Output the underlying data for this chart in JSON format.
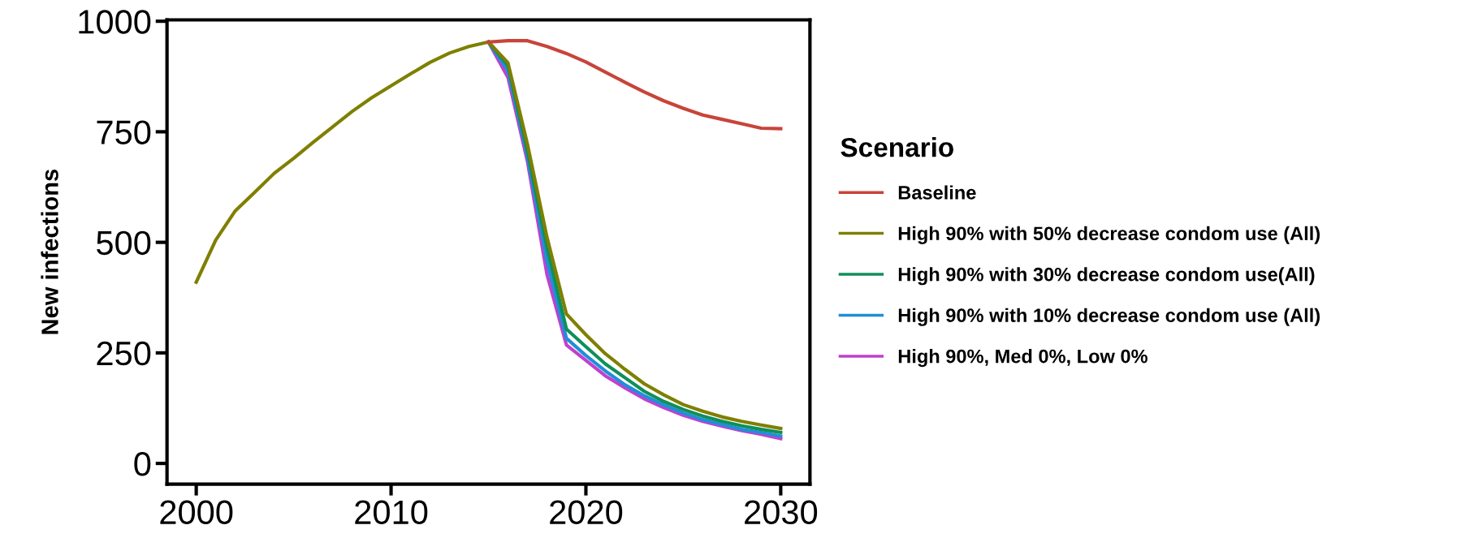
{
  "chart_data": {
    "type": "line",
    "ylabel": "New infections",
    "legend_title": "Scenario",
    "legend": "right",
    "grid": false,
    "x": [
      2000,
      2001,
      2002,
      2003,
      2004,
      2005,
      2006,
      2007,
      2008,
      2009,
      2010,
      2011,
      2012,
      2013,
      2014,
      2015,
      2016,
      2017,
      2018,
      2019,
      2020,
      2021,
      2022,
      2023,
      2024,
      2025,
      2026,
      2027,
      2028,
      2029,
      2030
    ],
    "xlim": [
      1998.5,
      2031.5
    ],
    "xticks": [
      2000,
      2010,
      2020,
      2030
    ],
    "ylim": [
      -47,
      1003
    ],
    "yticks": [
      0,
      250,
      500,
      750,
      1000
    ],
    "series": [
      {
        "name": "Baseline",
        "color": "#c8443a",
        "values": [
          null,
          null,
          null,
          null,
          null,
          null,
          null,
          null,
          null,
          null,
          null,
          null,
          null,
          null,
          null,
          953,
          956,
          956,
          943,
          927,
          908,
          885,
          862,
          840,
          820,
          803,
          788,
          778,
          768,
          758,
          757
        ]
      },
      {
        "name": "High 90% with 50% decrease condom use (All)",
        "color": "#7f7f00",
        "values": [
          410,
          505,
          571,
          613,
          656,
          690,
          726,
          761,
          796,
          827,
          854,
          881,
          907,
          928,
          943,
          953,
          906,
          722,
          512,
          338,
          291,
          248,
          213,
          180,
          155,
          133,
          118,
          105,
          95,
          87,
          79
        ]
      },
      {
        "name": "High 90% with 30% decrease condom use(All)",
        "color": "#0f8f5a",
        "values": [
          null,
          null,
          null,
          null,
          null,
          null,
          null,
          null,
          null,
          null,
          null,
          null,
          null,
          null,
          null,
          953,
          900,
          706,
          489,
          304,
          264,
          225,
          194,
          163,
          140,
          122,
          107,
          95,
          85,
          77,
          70
        ]
      },
      {
        "name": "High 90% with 10% decrease condom use (All)",
        "color": "#1f8fd6",
        "values": [
          null,
          null,
          null,
          null,
          null,
          null,
          null,
          null,
          null,
          null,
          null,
          null,
          null,
          null,
          null,
          953,
          888,
          695,
          458,
          283,
          244,
          209,
          178,
          153,
          132,
          114,
          99,
          88,
          77,
          70,
          62
        ]
      },
      {
        "name": "High 90%, Med 0%, Low 0%",
        "color": "#c040d0",
        "values": [
          null,
          null,
          null,
          null,
          null,
          null,
          null,
          null,
          null,
          null,
          null,
          null,
          null,
          null,
          null,
          953,
          873,
          683,
          428,
          268,
          233,
          198,
          171,
          146,
          126,
          109,
          95,
          84,
          74,
          66,
          56
        ]
      }
    ]
  }
}
